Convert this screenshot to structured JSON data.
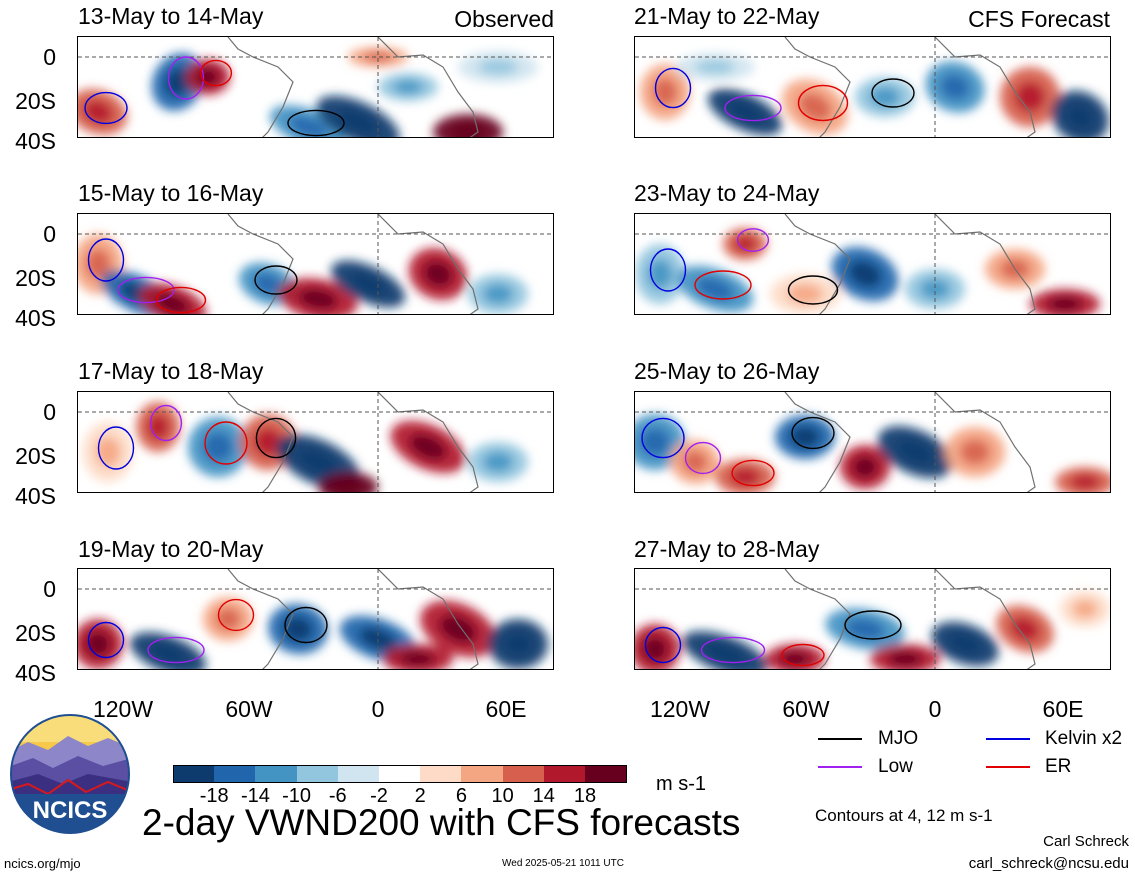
{
  "panels": [
    {
      "title": "13-May to 14-May",
      "tag": "Observed"
    },
    {
      "title": "21-May to 22-May",
      "tag": "CFS Forecast"
    },
    {
      "title": "15-May to 16-May",
      "tag": ""
    },
    {
      "title": "23-May to 24-May",
      "tag": ""
    },
    {
      "title": "17-May to 18-May",
      "tag": ""
    },
    {
      "title": "25-May to 26-May",
      "tag": ""
    },
    {
      "title": "19-May to 20-May",
      "tag": ""
    },
    {
      "title": "27-May to 28-May",
      "tag": ""
    }
  ],
  "chart_data": {
    "type": "heatmap",
    "title": "2-day VWND200 with CFS forecasts",
    "units": "m s-1",
    "lon_ticks": [
      "120W",
      "60W",
      "0",
      "60E"
    ],
    "lat_ticks": [
      "0",
      "20S",
      "40S"
    ],
    "lat_range": [
      -40,
      10
    ],
    "lon_range": [
      -145,
      80
    ],
    "colorbar": {
      "levels": [
        "-18",
        "-14",
        "-10",
        "-6",
        "-2",
        "2",
        "6",
        "10",
        "14",
        "18"
      ],
      "colors": [
        "#0d3b6e",
        "#2166ac",
        "#4393c3",
        "#92c5de",
        "#d1e5f0",
        "#ffffff",
        "#fddbc7",
        "#f4a582",
        "#d6604d",
        "#b2182b",
        "#67001f"
      ]
    },
    "legend": [
      {
        "label": "MJO",
        "color": "#000000"
      },
      {
        "label": "Kelvin x2",
        "color": "#0000e0"
      },
      {
        "label": "Low",
        "color": "#a020f0"
      },
      {
        "label": "ER",
        "color": "#e00000"
      }
    ],
    "contour_note": "Contours at 4, 12 m s-1"
  },
  "logo_text": "NCICS",
  "author": "Carl Schreck",
  "email": "carl_schreck@ncsu.edu",
  "site": "ncics.org/mjo",
  "timestamp": "Wed 2025-05-21 1011 UTC"
}
